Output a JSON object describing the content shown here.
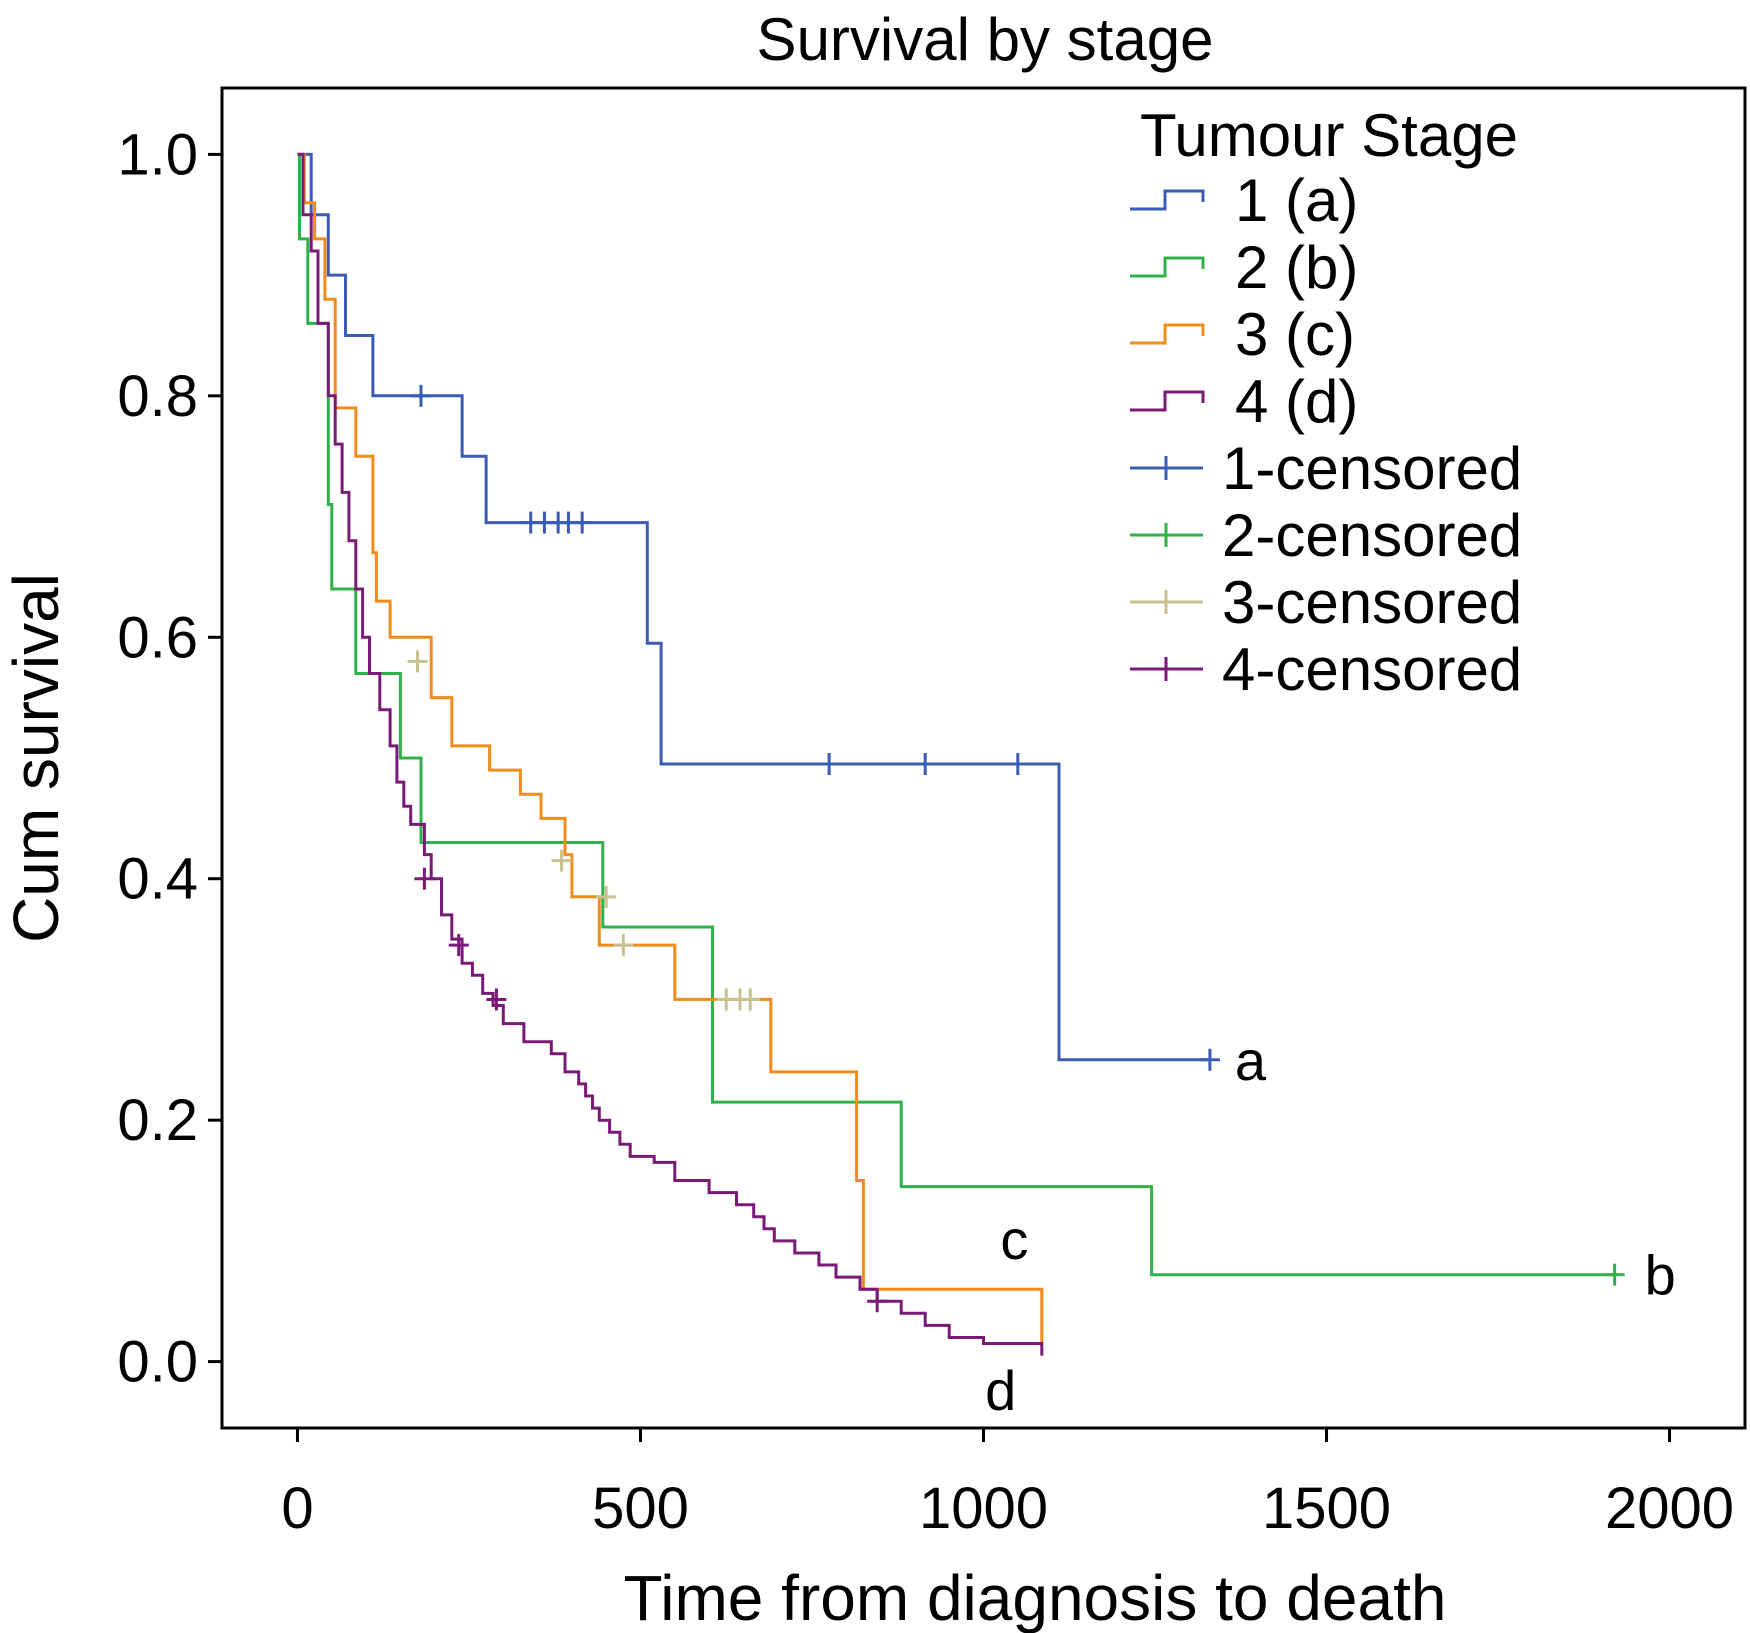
{
  "chart_data": {
    "type": "line",
    "title": "Survival by stage",
    "xlabel": "Time from diagnosis to death",
    "ylabel": "Cum survival",
    "xlim": [
      -110,
      2110
    ],
    "ylim": [
      -0.055,
      1.055
    ],
    "xticks": [
      0,
      500,
      1000,
      1500,
      2000
    ],
    "yticks": [
      0.0,
      0.2,
      0.4,
      0.6,
      0.8,
      1.0
    ],
    "ytick_labels": [
      "0.0",
      "0.2",
      "0.4",
      "0.6",
      "0.8",
      "1.0"
    ],
    "grid": false,
    "legend": {
      "title": "Tumour Stage",
      "placement": "top-right",
      "entries": [
        {
          "label": "1 (a)",
          "kind": "step",
          "color": "#3b5bb5"
        },
        {
          "label": "2 (b)",
          "kind": "step",
          "color": "#2fb24a"
        },
        {
          "label": "3 (c)",
          "kind": "step",
          "color": "#f08c1a"
        },
        {
          "label": "4 (d)",
          "kind": "step",
          "color": "#7a1a78"
        },
        {
          "label": "1-censored",
          "kind": "censor",
          "color": "#3b5bb5"
        },
        {
          "label": "2-censored",
          "kind": "censor",
          "color": "#2fb24a"
        },
        {
          "label": "3-censored",
          "kind": "censor",
          "color": "#c8c290"
        },
        {
          "label": "4-censored",
          "kind": "censor",
          "color": "#7a1a78"
        }
      ]
    },
    "series": [
      {
        "name": "1 (a)",
        "color": "#3b5bb5",
        "censor_color": "#3b5bb5",
        "end_label": "a",
        "steps": [
          [
            0,
            1.0
          ],
          [
            20,
            0.95
          ],
          [
            45,
            0.9
          ],
          [
            70,
            0.85
          ],
          [
            110,
            0.8
          ],
          [
            240,
            0.75
          ],
          [
            275,
            0.695
          ],
          [
            510,
            0.595
          ],
          [
            530,
            0.495
          ],
          [
            1110,
            0.495
          ],
          [
            1110,
            0.25
          ],
          [
            1330,
            0.25
          ]
        ],
        "censored": [
          [
            180,
            0.8
          ],
          [
            340,
            0.695
          ],
          [
            360,
            0.695
          ],
          [
            380,
            0.695
          ],
          [
            395,
            0.695
          ],
          [
            415,
            0.695
          ],
          [
            775,
            0.495
          ],
          [
            915,
            0.495
          ],
          [
            1050,
            0.495
          ],
          [
            1330,
            0.25
          ]
        ]
      },
      {
        "name": "2 (b)",
        "color": "#2fb24a",
        "censor_color": "#2fb24a",
        "end_label": "b",
        "steps": [
          [
            0,
            1.0
          ],
          [
            3,
            0.93
          ],
          [
            15,
            0.86
          ],
          [
            45,
            0.71
          ],
          [
            50,
            0.64
          ],
          [
            85,
            0.57
          ],
          [
            150,
            0.5
          ],
          [
            180,
            0.43
          ],
          [
            445,
            0.36
          ],
          [
            605,
            0.215
          ],
          [
            880,
            0.145
          ],
          [
            1245,
            0.072
          ],
          [
            1920,
            0.072
          ]
        ],
        "censored": [
          [
            1920,
            0.072
          ]
        ]
      },
      {
        "name": "3 (c)",
        "color": "#f08c1a",
        "censor_color": "#c8c290",
        "end_label": "c",
        "steps": [
          [
            0,
            1.0
          ],
          [
            10,
            0.96
          ],
          [
            25,
            0.93
          ],
          [
            40,
            0.88
          ],
          [
            55,
            0.79
          ],
          [
            85,
            0.75
          ],
          [
            110,
            0.67
          ],
          [
            115,
            0.63
          ],
          [
            135,
            0.6
          ],
          [
            195,
            0.55
          ],
          [
            225,
            0.51
          ],
          [
            280,
            0.49
          ],
          [
            325,
            0.47
          ],
          [
            355,
            0.45
          ],
          [
            390,
            0.42
          ],
          [
            400,
            0.385
          ],
          [
            440,
            0.345
          ],
          [
            550,
            0.3
          ],
          [
            690,
            0.24
          ],
          [
            815,
            0.15
          ],
          [
            825,
            0.06
          ],
          [
            1085,
            0.06
          ],
          [
            1085,
            0.015
          ]
        ],
        "censored": [
          [
            175,
            0.58
          ],
          [
            385,
            0.415
          ],
          [
            450,
            0.385
          ],
          [
            475,
            0.345
          ],
          [
            625,
            0.3
          ],
          [
            645,
            0.3
          ],
          [
            660,
            0.3
          ]
        ]
      },
      {
        "name": "4 (d)",
        "color": "#7a1a78",
        "censor_color": "#7a1a78",
        "end_label": "d",
        "steps": [
          [
            0,
            1.0
          ],
          [
            8,
            0.95
          ],
          [
            20,
            0.92
          ],
          [
            30,
            0.86
          ],
          [
            45,
            0.8
          ],
          [
            55,
            0.76
          ],
          [
            65,
            0.72
          ],
          [
            75,
            0.68
          ],
          [
            85,
            0.64
          ],
          [
            95,
            0.6
          ],
          [
            105,
            0.57
          ],
          [
            120,
            0.54
          ],
          [
            135,
            0.51
          ],
          [
            145,
            0.48
          ],
          [
            155,
            0.46
          ],
          [
            165,
            0.445
          ],
          [
            185,
            0.42
          ],
          [
            195,
            0.4
          ],
          [
            210,
            0.37
          ],
          [
            225,
            0.35
          ],
          [
            240,
            0.33
          ],
          [
            255,
            0.32
          ],
          [
            270,
            0.305
          ],
          [
            285,
            0.295
          ],
          [
            300,
            0.28
          ],
          [
            330,
            0.265
          ],
          [
            370,
            0.255
          ],
          [
            390,
            0.24
          ],
          [
            410,
            0.23
          ],
          [
            420,
            0.22
          ],
          [
            430,
            0.21
          ],
          [
            440,
            0.2
          ],
          [
            455,
            0.19
          ],
          [
            470,
            0.18
          ],
          [
            485,
            0.17
          ],
          [
            520,
            0.165
          ],
          [
            550,
            0.15
          ],
          [
            600,
            0.14
          ],
          [
            640,
            0.13
          ],
          [
            665,
            0.12
          ],
          [
            680,
            0.11
          ],
          [
            695,
            0.1
          ],
          [
            725,
            0.09
          ],
          [
            760,
            0.08
          ],
          [
            785,
            0.07
          ],
          [
            820,
            0.06
          ],
          [
            845,
            0.05
          ],
          [
            880,
            0.04
          ],
          [
            915,
            0.03
          ],
          [
            950,
            0.02
          ],
          [
            1000,
            0.015
          ],
          [
            1085,
            0.015
          ],
          [
            1085,
            0.005
          ]
        ],
        "censored": [
          [
            185,
            0.4
          ],
          [
            235,
            0.345
          ],
          [
            290,
            0.3
          ],
          [
            845,
            0.05
          ]
        ]
      }
    ]
  }
}
